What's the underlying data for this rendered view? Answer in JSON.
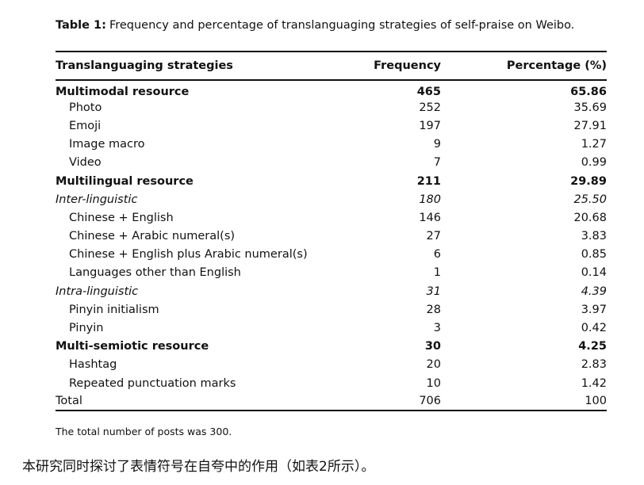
{
  "table": {
    "label": "Table 1:",
    "caption": "Frequency and percentage of translanguaging strategies of self-praise on Weibo.",
    "headers": [
      "Translanguaging strategies",
      "Frequency",
      "Percentage (%)"
    ],
    "rows": [
      [
        "Multimodal resource",
        "465",
        "65.86"
      ],
      [
        "Photo",
        "252",
        "35.69"
      ],
      [
        "Emoji",
        "197",
        "27.91"
      ],
      [
        "Image macro",
        "9",
        "1.27"
      ],
      [
        "Video",
        "7",
        "0.99"
      ],
      [
        "Multilingual resource",
        "211",
        "29.89"
      ],
      [
        "Inter-linguistic",
        "180",
        "25.50"
      ],
      [
        "Chinese + English",
        "146",
        "20.68"
      ],
      [
        "Chinese + Arabic numeral(s)",
        "27",
        "3.83"
      ],
      [
        "Chinese + English plus Arabic numeral(s)",
        "6",
        "0.85"
      ],
      [
        "Languages other than English",
        "1",
        "0.14"
      ],
      [
        "Intra-linguistic",
        "31",
        "4.39"
      ],
      [
        "Pinyin initialism",
        "28",
        "3.97"
      ],
      [
        "Pinyin",
        "3",
        "0.42"
      ],
      [
        "Multi-semiotic resource",
        "30",
        "4.25"
      ],
      [
        "Hashtag",
        "20",
        "2.83"
      ],
      [
        "Repeated punctuation marks",
        "10",
        "1.42"
      ],
      [
        "Total",
        "706",
        "100"
      ]
    ],
    "note": "The total number of posts was 300."
  },
  "body_text": "本研究同时探讨了表情符号在自夸中的作用（如表2所示）。"
}
